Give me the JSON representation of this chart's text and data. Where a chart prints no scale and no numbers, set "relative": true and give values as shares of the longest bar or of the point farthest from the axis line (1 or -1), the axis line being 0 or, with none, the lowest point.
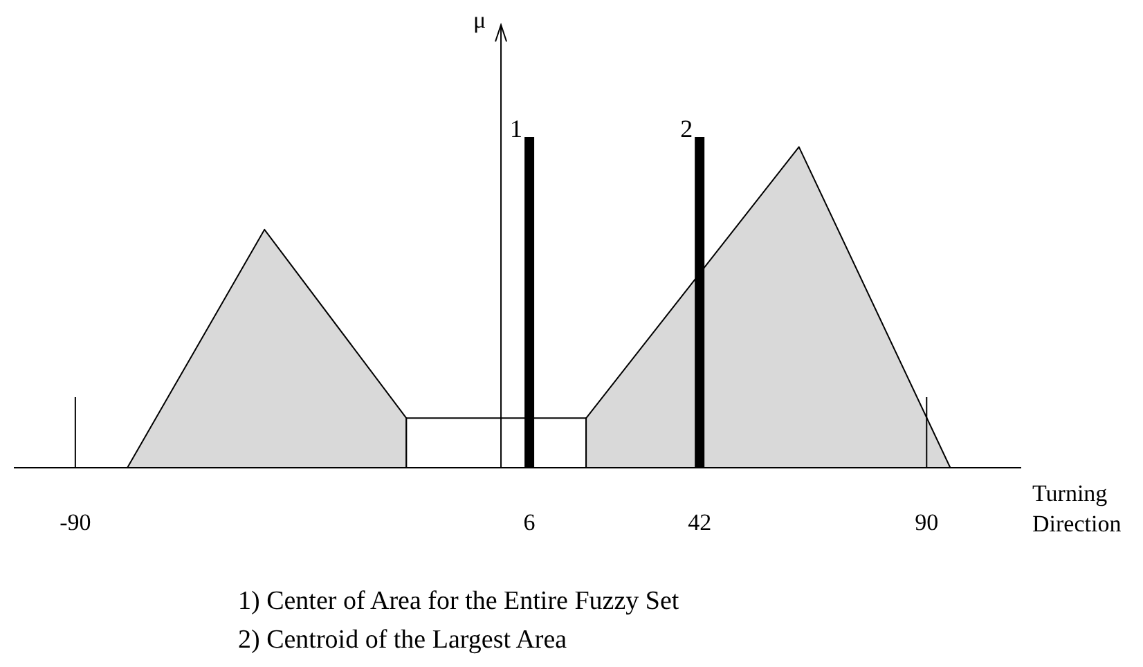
{
  "chart_data": {
    "type": "area",
    "relative": true,
    "xlabel": "Turning Direction",
    "ylabel": "μ",
    "xlim": [
      -103,
      110
    ],
    "xticks": [
      -90,
      6,
      42,
      90
    ],
    "series": [
      {
        "color": "#d9d9d9",
        "x": [
          -79,
          -50,
          -20,
          -20
        ],
        "values": [
          0,
          0.72,
          0.15,
          0
        ]
      },
      {
        "color": "#ffffff",
        "x": [
          -20,
          18
        ],
        "values": [
          0.15,
          0.15
        ]
      },
      {
        "color": "#d9d9d9",
        "x": [
          18,
          18,
          63,
          95
        ],
        "values": [
          0,
          0.15,
          0.97,
          0
        ]
      },
      {
        "type": "bar",
        "color": "#000000",
        "x": [
          6,
          42
        ],
        "values": [
          1,
          1
        ]
      }
    ],
    "annotations": [
      {
        "text": "1",
        "x": 6,
        "y": 1
      },
      {
        "text": "2",
        "x": 42,
        "y": 1
      },
      "1) Center of Area for the Entire Fuzzy Set",
      "2) Centroid of the Largest Area"
    ]
  }
}
